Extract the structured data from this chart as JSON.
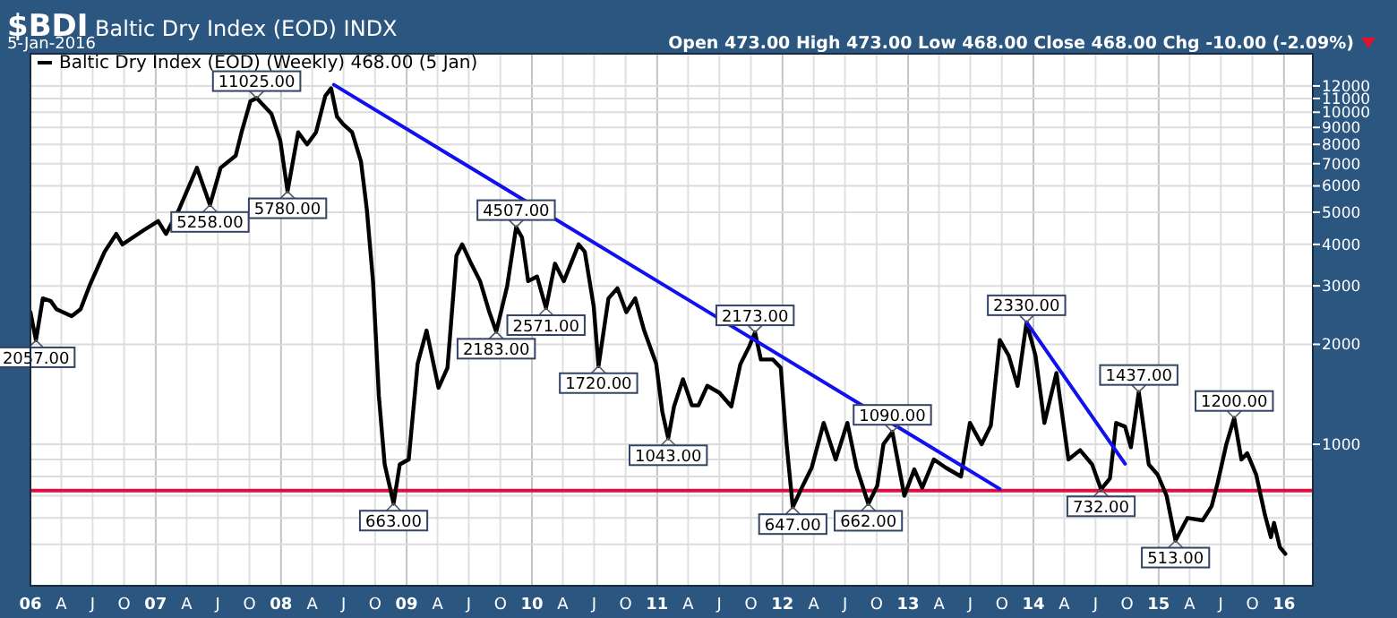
{
  "chart_data": {
    "type": "line",
    "title": "$BDI Baltic Dry Index (EOD) INDX",
    "subtitle": "5-Jan-2016",
    "annotations": [
      "Open 473.00 High 473.00 Low 468.00 Close 468.00 Chg -10.00 (-2.09%)",
      {
        "text": "2057.00",
        "x": "2006-01-17",
        "y": 2057
      },
      {
        "text": "5258.00",
        "x": "2007-06-08",
        "y": 5258
      },
      {
        "text": "11025.00",
        "x": "2007-10-22",
        "y": 11025
      },
      {
        "text": "5780.00",
        "x": "2008-01-20",
        "y": 5780
      },
      {
        "text": "663.00",
        "x": "2008-11-24",
        "y": 663
      },
      {
        "text": "2183.00",
        "x": "2009-09-19",
        "y": 2183
      },
      {
        "text": "4507.00",
        "x": "2009-11-16",
        "y": 4507
      },
      {
        "text": "2571.00",
        "x": "2010-02-11",
        "y": 2571
      },
      {
        "text": "1720.00",
        "x": "2010-07-14",
        "y": 1720
      },
      {
        "text": "1043.00",
        "x": "2011-02-02",
        "y": 1043
      },
      {
        "text": "2173.00",
        "x": "2011-10-13",
        "y": 2173
      },
      {
        "text": "647.00",
        "x": "2012-01-31",
        "y": 647
      },
      {
        "text": "662.00",
        "x": "2012-09-07",
        "y": 662
      },
      {
        "text": "1090.00",
        "x": "2012-11-16",
        "y": 1090
      },
      {
        "text": "2330.00",
        "x": "2013-12-12",
        "y": 2330
      },
      {
        "text": "732.00",
        "x": "2014-07-17",
        "y": 732
      },
      {
        "text": "1437.00",
        "x": "2014-11-04",
        "y": 1437
      },
      {
        "text": "513.00",
        "x": "2015-02-19",
        "y": 513
      },
      {
        "text": "1200.00",
        "x": "2015-08-09",
        "y": 1200
      }
    ],
    "xlim": [
      "2006-01-01",
      "2016-03-25"
    ],
    "xticks": [
      {
        "value": "2006-01-01",
        "label": "06"
      },
      {
        "value": "2006-04-01",
        "label": "A"
      },
      {
        "value": "2006-07-01",
        "label": "J"
      },
      {
        "value": "2006-10-01",
        "label": "O"
      },
      {
        "value": "2007-01-01",
        "label": "07"
      },
      {
        "value": "2007-04-01",
        "label": "A"
      },
      {
        "value": "2007-07-01",
        "label": "J"
      },
      {
        "value": "2007-10-01",
        "label": "O"
      },
      {
        "value": "2008-01-01",
        "label": "08"
      },
      {
        "value": "2008-04-01",
        "label": "A"
      },
      {
        "value": "2008-07-01",
        "label": "J"
      },
      {
        "value": "2008-10-01",
        "label": "O"
      },
      {
        "value": "2009-01-01",
        "label": "09"
      },
      {
        "value": "2009-04-01",
        "label": "A"
      },
      {
        "value": "2009-07-01",
        "label": "J"
      },
      {
        "value": "2009-10-01",
        "label": "O"
      },
      {
        "value": "2010-01-01",
        "label": "10"
      },
      {
        "value": "2010-04-01",
        "label": "A"
      },
      {
        "value": "2010-07-01",
        "label": "J"
      },
      {
        "value": "2010-10-01",
        "label": "O"
      },
      {
        "value": "2011-01-01",
        "label": "11"
      },
      {
        "value": "2011-04-01",
        "label": "A"
      },
      {
        "value": "2011-07-01",
        "label": "J"
      },
      {
        "value": "2011-10-01",
        "label": "O"
      },
      {
        "value": "2012-01-01",
        "label": "12"
      },
      {
        "value": "2012-04-01",
        "label": "A"
      },
      {
        "value": "2012-07-01",
        "label": "J"
      },
      {
        "value": "2012-10-01",
        "label": "O"
      },
      {
        "value": "2013-01-01",
        "label": "13"
      },
      {
        "value": "2013-04-01",
        "label": "A"
      },
      {
        "value": "2013-07-01",
        "label": "J"
      },
      {
        "value": "2013-10-01",
        "label": "O"
      },
      {
        "value": "2014-01-01",
        "label": "14"
      },
      {
        "value": "2014-04-01",
        "label": "A"
      },
      {
        "value": "2014-07-01",
        "label": "J"
      },
      {
        "value": "2014-10-01",
        "label": "O"
      },
      {
        "value": "2015-01-01",
        "label": "15"
      },
      {
        "value": "2015-04-01",
        "label": "A"
      },
      {
        "value": "2015-07-01",
        "label": "J"
      },
      {
        "value": "2015-10-01",
        "label": "O"
      },
      {
        "value": "2016-01-01",
        "label": "16"
      }
    ],
    "ylim": [
      375,
      15000
    ],
    "log": true,
    "yticks": [
      {
        "value": 500,
        "label": null
      },
      {
        "value": 600,
        "label": null
      },
      {
        "value": 700,
        "label": null
      },
      {
        "value": 800,
        "label": null
      },
      {
        "value": 900,
        "label": null
      },
      1000,
      2000,
      3000,
      4000,
      5000,
      6000,
      7000,
      8000,
      9000,
      10000,
      11000,
      12000
    ],
    "grid": true,
    "legend": "top left",
    "ref_lines": [
      {
        "axis": "y",
        "value": 725,
        "color": "#dc1040"
      }
    ],
    "series": [
      {
        "name": "Baltic Dry Index (EOD) (Weekly) 468.00 (5 Jan)",
        "color": "#000000",
        "x": [
          "2006-01-01",
          "2006-01-17",
          "2006-02-06",
          "2006-03-01",
          "2006-03-18",
          "2006-05-01",
          "2006-05-27",
          "2006-06-22",
          "2006-08-05",
          "2006-09-08",
          "2006-09-26",
          "2006-11-25",
          "2007-01-08",
          "2007-01-31",
          "2007-03-10",
          "2007-05-01",
          "2007-06-08",
          "2007-07-09",
          "2007-08-22",
          "2007-09-08",
          "2007-10-04",
          "2007-10-22",
          "2007-12-04",
          "2007-12-30",
          "2008-01-20",
          "2008-02-20",
          "2008-03-17",
          "2008-04-12",
          "2008-05-09",
          "2008-05-26",
          "2008-06-12",
          "2008-06-30",
          "2008-07-26",
          "2008-08-21",
          "2008-09-07",
          "2008-09-25",
          "2008-10-12",
          "2008-10-29",
          "2008-11-24",
          "2008-12-12",
          "2009-01-07",
          "2009-02-02",
          "2009-02-28",
          "2009-04-04",
          "2009-04-30",
          "2009-05-26",
          "2009-06-12",
          "2009-07-08",
          "2009-08-03",
          "2009-08-30",
          "2009-09-19",
          "2009-10-21",
          "2009-11-16",
          "2009-12-03",
          "2009-12-21",
          "2010-01-16",
          "2010-02-11",
          "2010-03-09",
          "2010-04-04",
          "2010-05-17",
          "2010-06-04",
          "2010-06-30",
          "2010-07-14",
          "2010-08-12",
          "2010-09-07",
          "2010-10-03",
          "2010-10-29",
          "2010-11-24",
          "2010-12-29",
          "2011-01-16",
          "2011-02-02",
          "2011-02-19",
          "2011-03-17",
          "2011-04-12",
          "2011-05-01",
          "2011-05-27",
          "2011-07-01",
          "2011-08-05",
          "2011-08-31",
          "2011-09-26",
          "2011-10-13",
          "2011-10-30",
          "2011-12-04",
          "2011-12-27",
          "2012-01-13",
          "2012-01-31",
          "2012-02-29",
          "2012-03-26",
          "2012-04-30",
          "2012-06-04",
          "2012-07-08",
          "2012-08-04",
          "2012-09-07",
          "2012-10-03",
          "2012-10-21",
          "2012-11-16",
          "2012-12-21",
          "2013-01-19",
          "2013-02-11",
          "2013-03-17",
          "2013-04-21",
          "2013-06-04",
          "2013-06-30",
          "2013-08-03",
          "2013-08-30",
          "2013-09-25",
          "2013-10-21",
          "2013-11-16",
          "2013-12-12",
          "2014-01-07",
          "2014-02-02",
          "2014-03-09",
          "2014-04-13",
          "2014-05-17",
          "2014-06-21",
          "2014-07-17",
          "2014-08-12",
          "2014-08-30",
          "2014-09-25",
          "2014-10-12",
          "2014-11-04",
          "2014-12-03",
          "2014-12-29",
          "2015-01-24",
          "2015-02-19",
          "2015-03-26",
          "2015-05-09",
          "2015-06-04",
          "2015-06-21",
          "2015-07-17",
          "2015-08-09",
          "2015-08-30",
          "2015-09-16",
          "2015-10-12",
          "2015-11-07",
          "2015-11-24",
          "2015-12-03",
          "2015-12-20",
          "2016-01-05"
        ],
        "values": [
          2500,
          2057,
          2750,
          2700,
          2550,
          2430,
          2550,
          3000,
          3800,
          4300,
          4000,
          4400,
          4700,
          4300,
          5100,
          6800,
          5258,
          6800,
          7400,
          8700,
          10800,
          11025,
          9900,
          8200,
          5780,
          8700,
          8000,
          8700,
          11200,
          11800,
          9700,
          9200,
          8700,
          7100,
          5100,
          3100,
          1400,
          870,
          663,
          870,
          900,
          1750,
          2200,
          1480,
          1700,
          3700,
          4000,
          3500,
          3100,
          2500,
          2183,
          3000,
          4507,
          4200,
          3100,
          3200,
          2571,
          3500,
          3100,
          4000,
          3800,
          2600,
          1720,
          2750,
          2950,
          2500,
          2750,
          2200,
          1750,
          1250,
          1043,
          1300,
          1570,
          1310,
          1310,
          1500,
          1430,
          1300,
          1740,
          1970,
          2173,
          1800,
          1800,
          1700,
          1000,
          647,
          750,
          850,
          1160,
          900,
          1160,
          850,
          662,
          750,
          1000,
          1090,
          700,
          840,
          740,
          900,
          850,
          800,
          1160,
          1000,
          1140,
          2060,
          1850,
          1500,
          2330,
          1850,
          1160,
          1640,
          900,
          960,
          870,
          732,
          790,
          1160,
          1130,
          980,
          1437,
          870,
          810,
          700,
          513,
          600,
          590,
          650,
          760,
          1000,
          1200,
          900,
          940,
          810,
          610,
          525,
          580,
          490,
          468
        ]
      },
      {
        "type": "line",
        "color": "#1010f0",
        "x": [
          "2008-06-03",
          "2013-09-25"
        ],
        "values": [
          12100,
          734
        ]
      },
      {
        "type": "line",
        "color": "#1010f0",
        "x": [
          "2013-12-12",
          "2014-09-25"
        ],
        "values": [
          2330,
          873
        ]
      }
    ]
  }
}
